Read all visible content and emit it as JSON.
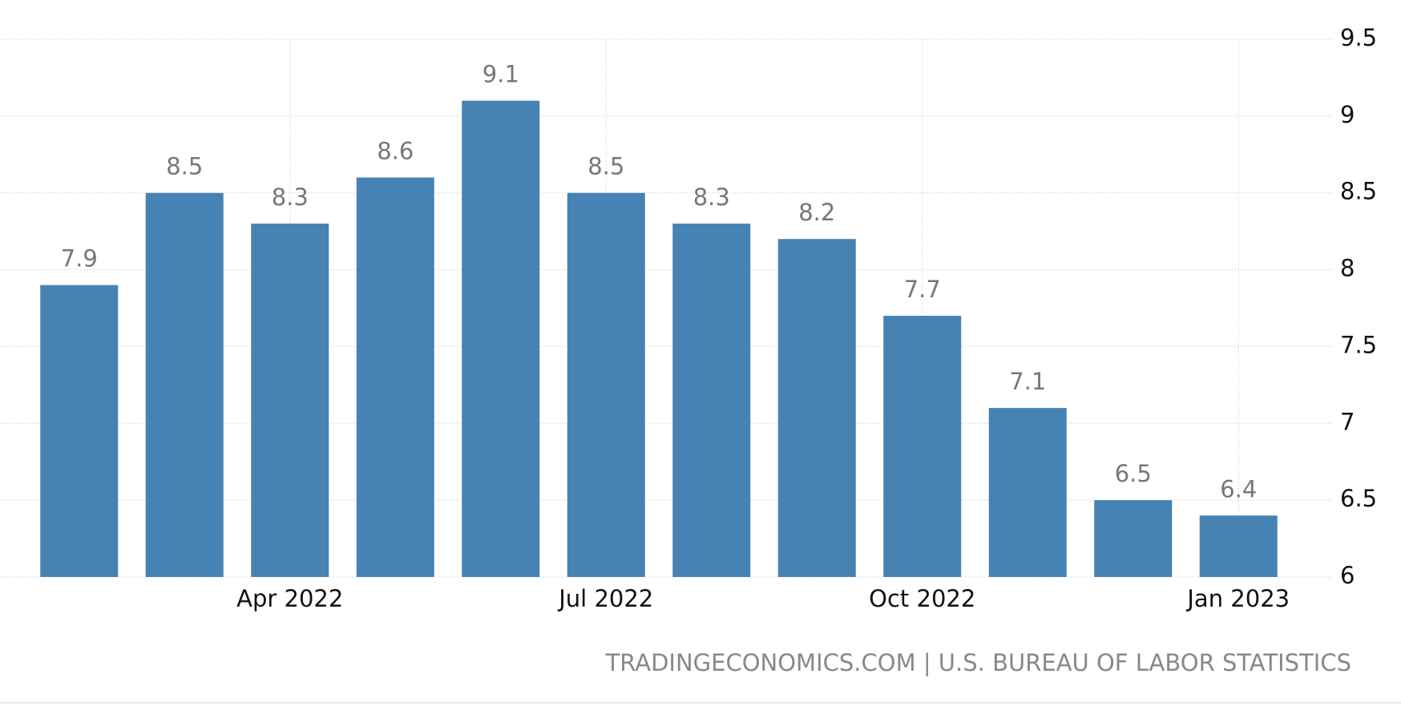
{
  "chart_data": {
    "type": "bar",
    "categories": [
      null,
      null,
      "Apr 2022",
      null,
      null,
      "Jul 2022",
      null,
      null,
      "Oct 2022",
      null,
      null,
      "Jan 2023"
    ],
    "values": [
      7.9,
      8.5,
      8.3,
      8.6,
      9.1,
      8.5,
      8.3,
      8.2,
      7.7,
      7.1,
      6.5,
      6.4
    ],
    "color": "#4682b4",
    "ylim": [
      6,
      9.5
    ],
    "yticks": [
      6,
      6.5,
      7,
      7.5,
      8,
      8.5,
      9,
      9.5
    ],
    "grid": true,
    "source": "TRADINGECONOMICS.COM | U.S. BUREAU OF LABOR STATISTICS"
  }
}
